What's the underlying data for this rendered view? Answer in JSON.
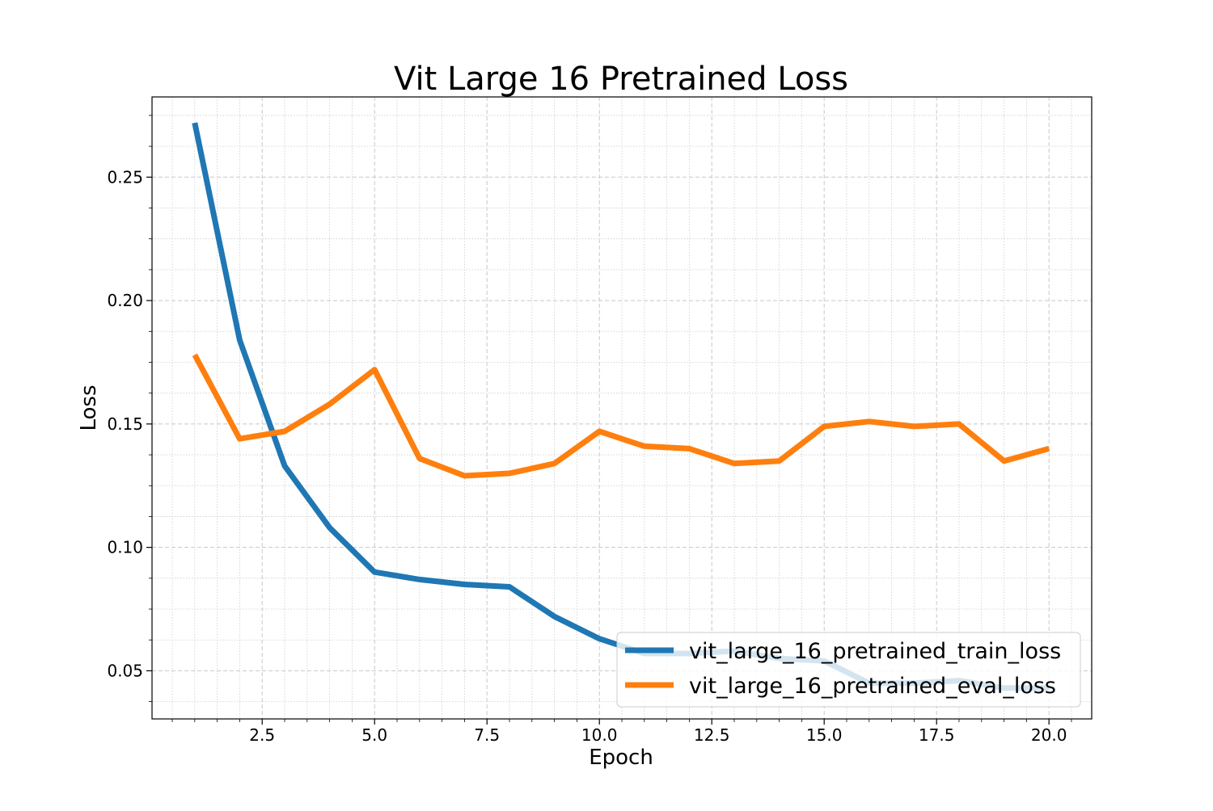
{
  "chart_data": {
    "type": "line",
    "title": "Vit Large 16 Pretrained Loss",
    "xlabel": "Epoch",
    "ylabel": "Loss",
    "xlim": [
      0.05,
      20.95
    ],
    "ylim": [
      0.0305,
      0.2825
    ],
    "x_ticks": [
      2.5,
      5.0,
      7.5,
      10.0,
      12.5,
      15.0,
      17.5,
      20.0
    ],
    "x_tick_labels": [
      "2.5",
      "5.0",
      "7.5",
      "10.0",
      "12.5",
      "15.0",
      "17.5",
      "20.0"
    ],
    "y_ticks": [
      0.05,
      0.1,
      0.15,
      0.2,
      0.25
    ],
    "y_tick_labels": [
      "0.05",
      "0.10",
      "0.15",
      "0.20",
      "0.25"
    ],
    "grid": true,
    "legend_position": "lower-right",
    "x": [
      1,
      2,
      3,
      4,
      5,
      6,
      7,
      8,
      9,
      10,
      11,
      12,
      13,
      14,
      15,
      16,
      17,
      18,
      19,
      20
    ],
    "series": [
      {
        "name": "vit_large_16_pretrained_train_loss",
        "color": "#1f77b4",
        "values": [
          0.272,
          0.184,
          0.133,
          0.108,
          0.09,
          0.087,
          0.085,
          0.084,
          0.072,
          0.063,
          0.057,
          0.057,
          0.058,
          0.055,
          0.054,
          0.045,
          0.045,
          0.046,
          0.043,
          0.043
        ]
      },
      {
        "name": "vit_large_16_pretrained_eval_loss",
        "color": "#ff7f0e",
        "values": [
          0.178,
          0.144,
          0.147,
          0.158,
          0.172,
          0.136,
          0.129,
          0.13,
          0.134,
          0.147,
          0.141,
          0.14,
          0.134,
          0.135,
          0.149,
          0.151,
          0.149,
          0.15,
          0.135,
          0.14
        ]
      }
    ]
  }
}
